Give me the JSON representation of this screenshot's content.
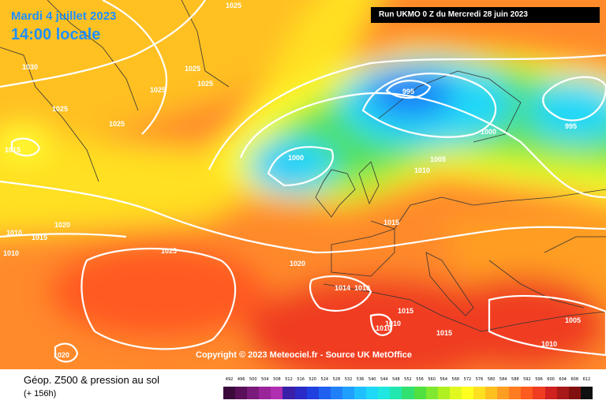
{
  "header": {
    "date": "Mardi 4 juillet 2023",
    "time": "14:00 locale",
    "run": "Run UKMO 0 Z du Mercredi 28 juin 2023"
  },
  "map": {
    "copyright": "Copyright © 2023 Meteociel.fr - Source UK MetOffice",
    "isobar_labels": [
      "1025",
      "1030",
      "1025",
      "1025",
      "1025",
      "1025",
      "1025",
      "1015",
      "1010",
      "1010",
      "1015",
      "1020",
      "1025",
      "1020",
      "995",
      "1000",
      "1000",
      "1005",
      "1010",
      "995",
      "1015",
      "1014",
      "1010",
      "1015",
      "1010",
      "1010",
      "1015",
      "1005",
      "1010",
      "1020"
    ]
  },
  "footer": {
    "title": "Géop. Z500 & pression au sol",
    "subtitle": "(+ 156h)"
  },
  "legend": {
    "values": [
      "492",
      "496",
      "500",
      "504",
      "508",
      "512",
      "516",
      "520",
      "524",
      "528",
      "532",
      "536",
      "540",
      "544",
      "548",
      "552",
      "556",
      "560",
      "564",
      "568",
      "572",
      "576",
      "580",
      "584",
      "588",
      "592",
      "596",
      "600",
      "604",
      "608",
      "612"
    ],
    "colors": [
      "#3b0a3b",
      "#5a0f5a",
      "#7a1a7a",
      "#9a249a",
      "#b02eb0",
      "#3b1fa8",
      "#2a2ac8",
      "#1f3fe0",
      "#1f60f0",
      "#1f80f8",
      "#1fa0ff",
      "#1fc0ff",
      "#20d8f8",
      "#20e8e0",
      "#22e8b0",
      "#30e070",
      "#50e040",
      "#80e830",
      "#b0f020",
      "#e0f820",
      "#ffff20",
      "#ffe020",
      "#ffc020",
      "#ff9e20",
      "#ff7c20",
      "#ff5a20",
      "#f03c20",
      "#d02020",
      "#a81818",
      "#801010",
      "#101010"
    ]
  }
}
